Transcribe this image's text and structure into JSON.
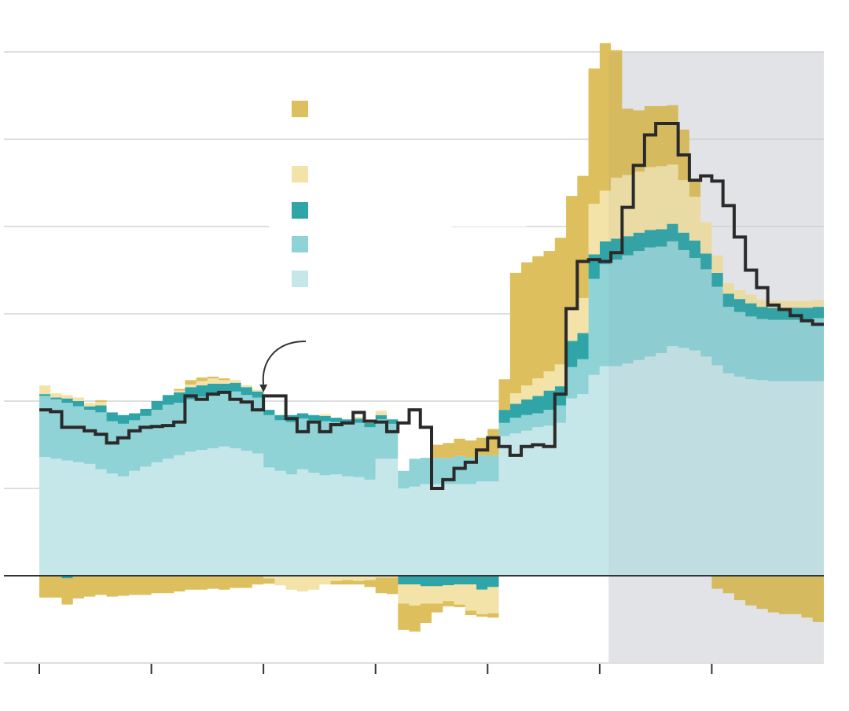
{
  "chart_data": {
    "type": "area",
    "title": "",
    "xlabel": "",
    "ylabel": "",
    "x_start": 0,
    "x_end": 70,
    "x_ticks": [
      0,
      10,
      20,
      30,
      40,
      50,
      60
    ],
    "ylim": [
      -1,
      6
    ],
    "y_gridlines": [
      6,
      5,
      4,
      3,
      2,
      1,
      -1
    ],
    "zero_line": 0,
    "shaded_x_range": [
      50.8,
      70
    ],
    "legend_placement": "top-center",
    "annotation": {
      "type": "arrow",
      "target_x": 20,
      "target_y": 2.1
    },
    "colors": {
      "s1": "#c6e7ea",
      "s2": "#8fd3d7",
      "s3": "#2fa5a8",
      "s4": "#f4e3a8",
      "s5": "#ddbf5d",
      "line": "#2a2a2a",
      "shade": "#ebecee",
      "grid": "#dedede"
    },
    "series": [
      {
        "key": "s1",
        "values": [
          1.36,
          1.34,
          1.32,
          1.3,
          1.28,
          1.22,
          1.17,
          1.14,
          1.2,
          1.25,
          1.3,
          1.34,
          1.38,
          1.42,
          1.44,
          1.46,
          1.48,
          1.46,
          1.43,
          1.4,
          1.24,
          1.2,
          1.16,
          1.22,
          1.18,
          1.15,
          1.16,
          1.14,
          1.13,
          1.1,
          1.34,
          1.34,
          1.0,
          1.02,
          1.05,
          1.05,
          1.05,
          1.05,
          1.05,
          1.08,
          1.08,
          1.6,
          1.63,
          1.66,
          1.7,
          1.72,
          1.75,
          2.03,
          2.08,
          2.3,
          2.4,
          2.4,
          2.43,
          2.47,
          2.51,
          2.55,
          2.63,
          2.61,
          2.58,
          2.51,
          2.41,
          2.32,
          2.28,
          2.25,
          2.24,
          2.23,
          2.23,
          2.23,
          2.23,
          2.23
        ]
      },
      {
        "key": "s2",
        "values": [
          0.7,
          0.68,
          0.66,
          0.64,
          0.62,
          0.65,
          0.6,
          0.6,
          0.58,
          0.58,
          0.6,
          0.62,
          0.6,
          0.6,
          0.61,
          0.62,
          0.62,
          0.65,
          0.64,
          0.64,
          0.6,
          0.58,
          0.6,
          0.58,
          0.6,
          0.62,
          0.6,
          0.6,
          0.62,
          0.6,
          0.45,
          0.4,
          0.2,
          0.32,
          0.3,
          0.3,
          0.3,
          0.32,
          0.3,
          0.3,
          0.3,
          0.15,
          0.18,
          0.18,
          0.16,
          0.18,
          0.2,
          0.36,
          0.4,
          1.1,
          1.17,
          1.22,
          1.24,
          1.25,
          1.25,
          1.22,
          1.2,
          1.12,
          1.06,
          1.0,
          0.9,
          0.76,
          0.74,
          0.72,
          0.7,
          0.7,
          0.7,
          0.7,
          0.7,
          0.72
        ]
      },
      {
        "key": "s3",
        "values": [
          0.02,
          0.02,
          0.05,
          0.06,
          0.04,
          0.08,
          0.1,
          0.1,
          0.08,
          0.08,
          0.1,
          0.11,
          0.12,
          0.14,
          0.13,
          0.12,
          0.1,
          0.1,
          0.09,
          0.07,
          0.06,
          0.06,
          0.08,
          0.06,
          0.06,
          0.06,
          0.05,
          0.05,
          0.05,
          0.05,
          0.05,
          0.05,
          0.0,
          0.0,
          0.0,
          0.0,
          0.0,
          0.0,
          0.0,
          0.0,
          0.0,
          0.15,
          0.16,
          0.18,
          0.2,
          0.22,
          0.22,
          0.3,
          0.3,
          0.28,
          0.26,
          0.24,
          0.22,
          0.21,
          0.2,
          0.2,
          0.2,
          0.2,
          0.2,
          0.18,
          0.16,
          0.15,
          0.15,
          0.15,
          0.14,
          0.14,
          0.14,
          0.14,
          0.14,
          0.13
        ]
      },
      {
        "key": "s4",
        "values": [
          0.1,
          0.05,
          0.04,
          0.04,
          0.04,
          0.04,
          0.0,
          0.0,
          0.0,
          0.0,
          0.0,
          0.0,
          0.02,
          0.03,
          0.05,
          0.06,
          0.04,
          0.03,
          0.02,
          0.02,
          0.0,
          0.0,
          0.0,
          0.0,
          0.0,
          0.02,
          0.0,
          0.0,
          0.02,
          0.04,
          0.05,
          0.0,
          0.0,
          0.0,
          0.0,
          0.0,
          0.0,
          0.0,
          0.0,
          0.0,
          0.0,
          0.0,
          0.12,
          0.16,
          0.2,
          0.22,
          0.25,
          0.38,
          0.4,
          0.58,
          0.58,
          0.7,
          0.7,
          0.7,
          0.72,
          0.72,
          0.68,
          0.6,
          0.5,
          0.36,
          0.2,
          0.12,
          0.1,
          0.1,
          0.08,
          0.08,
          0.08,
          0.08,
          0.08,
          0.08
        ]
      },
      {
        "key": "s5",
        "values": [
          0.0,
          0.0,
          0.0,
          0.0,
          0.0,
          0.02,
          0.0,
          0.0,
          0.0,
          0.0,
          0.0,
          0.0,
          0.02,
          0.05,
          0.04,
          0.02,
          0.02,
          0.0,
          0.0,
          0.0,
          0.0,
          0.0,
          0.0,
          0.0,
          0.0,
          0.0,
          0.0,
          0.0,
          0.0,
          0.0,
          0.0,
          0.0,
          0.0,
          0.0,
          0.0,
          0.15,
          0.17,
          0.2,
          0.2,
          0.2,
          0.3,
          0.35,
          1.38,
          1.41,
          1.4,
          1.38,
          1.45,
          1.28,
          1.4,
          1.55,
          1.69,
          1.46,
          0.76,
          0.7,
          0.7,
          0.69,
          0.68,
          0.58,
          0.18,
          0.0,
          0.0,
          0.0,
          0.0,
          0.0,
          0.0,
          0.0,
          0.0,
          0.0,
          0.0,
          0.0
        ]
      },
      {
        "key": "s3n",
        "values": [
          0.0,
          0.0,
          -0.03,
          0.0,
          0.0,
          0.0,
          0.0,
          0.0,
          0.0,
          0.0,
          0.0,
          0.0,
          0.0,
          0.0,
          0.0,
          0.0,
          0.0,
          0.0,
          0.0,
          0.0,
          0.0,
          0.0,
          0.0,
          0.0,
          0.0,
          0.0,
          0.0,
          0.0,
          0.0,
          0.0,
          0.0,
          0.0,
          -0.1,
          -0.1,
          -0.12,
          -0.12,
          -0.11,
          -0.1,
          -0.1,
          -0.16,
          -0.13,
          0.0,
          0.0,
          0.0,
          0.0,
          0.0,
          0.0,
          0.0,
          0.0,
          0.0,
          0.0,
          0.0,
          0.0,
          0.0,
          0.0,
          0.0,
          0.0,
          0.0,
          0.0,
          0.0,
          0.0,
          0.0,
          0.0,
          0.0,
          0.0,
          0.0,
          0.0,
          0.0,
          0.0,
          0.0
        ]
      },
      {
        "key": "s4n",
        "values": [
          0.0,
          0.0,
          0.0,
          0.0,
          0.0,
          0.0,
          0.0,
          0.0,
          0.0,
          0.0,
          0.0,
          0.0,
          0.0,
          0.0,
          0.0,
          0.0,
          0.0,
          0.0,
          0.0,
          0.0,
          -0.03,
          -0.11,
          -0.16,
          -0.18,
          -0.16,
          -0.1,
          -0.06,
          -0.05,
          -0.06,
          -0.05,
          -0.02,
          -0.02,
          -0.22,
          -0.24,
          -0.2,
          -0.2,
          -0.18,
          -0.23,
          -0.3,
          -0.28,
          -0.3,
          0.0,
          0.0,
          0.0,
          0.0,
          0.0,
          0.0,
          0.0,
          0.0,
          0.0,
          0.0,
          0.0,
          0.0,
          0.0,
          0.0,
          0.0,
          0.0,
          0.0,
          0.0,
          0.0,
          0.0,
          0.0,
          0.0,
          0.0,
          0.0,
          0.0,
          0.0,
          0.0,
          0.0,
          0.0
        ]
      },
      {
        "key": "s5n",
        "values": [
          -0.25,
          -0.25,
          -0.3,
          -0.26,
          -0.24,
          -0.22,
          -0.24,
          -0.23,
          -0.22,
          -0.22,
          -0.2,
          -0.2,
          -0.18,
          -0.16,
          -0.16,
          -0.15,
          -0.16,
          -0.14,
          -0.14,
          -0.1,
          -0.06,
          0.0,
          0.0,
          0.0,
          0.0,
          0.0,
          -0.04,
          -0.05,
          -0.04,
          -0.08,
          -0.18,
          -0.19,
          -0.3,
          -0.3,
          -0.22,
          -0.1,
          -0.06,
          -0.03,
          -0.05,
          -0.03,
          -0.05,
          0.0,
          0.0,
          0.0,
          0.0,
          0.0,
          0.0,
          0.0,
          0.0,
          0.0,
          0.0,
          0.0,
          0.0,
          0.0,
          0.0,
          0.0,
          0.0,
          0.0,
          0.0,
          0.0,
          -0.15,
          -0.2,
          -0.28,
          -0.34,
          -0.38,
          -0.42,
          -0.44,
          -0.44,
          -0.48,
          -0.53
        ]
      }
    ],
    "line": {
      "key": "line",
      "values": [
        1.9,
        1.88,
        1.7,
        1.7,
        1.66,
        1.62,
        1.52,
        1.58,
        1.66,
        1.7,
        1.71,
        1.72,
        1.76,
        2.06,
        2.02,
        2.08,
        2.1,
        2.02,
        1.99,
        1.9,
        2.06,
        2.06,
        1.8,
        1.65,
        1.76,
        1.65,
        1.73,
        1.75,
        1.87,
        1.77,
        1.76,
        1.65,
        1.75,
        1.9,
        1.7,
        1.0,
        1.1,
        1.23,
        1.3,
        1.44,
        1.58,
        1.48,
        1.38,
        1.48,
        1.5,
        1.48,
        2.08,
        3.06,
        3.6,
        3.62,
        3.6,
        3.7,
        4.22,
        4.7,
        5.05,
        5.18,
        5.18,
        4.82,
        4.53,
        4.58,
        4.52,
        4.24,
        3.88,
        3.5,
        3.3,
        3.1,
        3.05,
        2.98,
        2.92,
        2.88
      ]
    },
    "legend": [
      {
        "key": "s5",
        "label": ""
      },
      {
        "key": "s4",
        "label": ""
      },
      {
        "key": "s3",
        "label": ""
      },
      {
        "key": "s2",
        "label": ""
      },
      {
        "key": "s1",
        "label": ""
      }
    ]
  }
}
